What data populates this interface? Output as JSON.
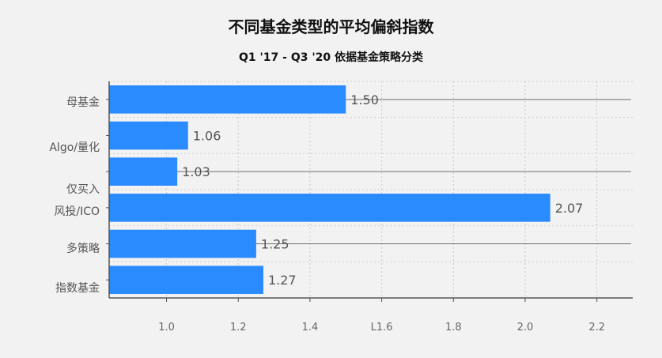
{
  "chart_data": {
    "type": "bar",
    "orientation": "horizontal",
    "title": "不同基金类型的平均偏斜指数",
    "subtitle": "Q1 '17 - Q3 '20 依据基金策略分类",
    "categories": [
      "母基金",
      "Algo/量化",
      "仅买入",
      "风投/ICO",
      "多策略",
      "指数基金"
    ],
    "values": [
      1.5,
      1.06,
      1.03,
      2.07,
      1.25,
      1.27
    ],
    "data_labels": [
      "1.50",
      "1.06",
      "1.03",
      "2.07",
      "1.25",
      "1.27"
    ],
    "xticks": [
      "1.0",
      "1.2",
      "1.4",
      "L1.6",
      "1.8",
      "2.0",
      "2.2"
    ],
    "xtick_values": [
      1.0,
      1.2,
      1.4,
      1.6,
      1.8,
      2.0,
      2.2
    ],
    "xlim": [
      0.84,
      2.3
    ],
    "grid": true,
    "bar_color": "#2a8bff"
  }
}
